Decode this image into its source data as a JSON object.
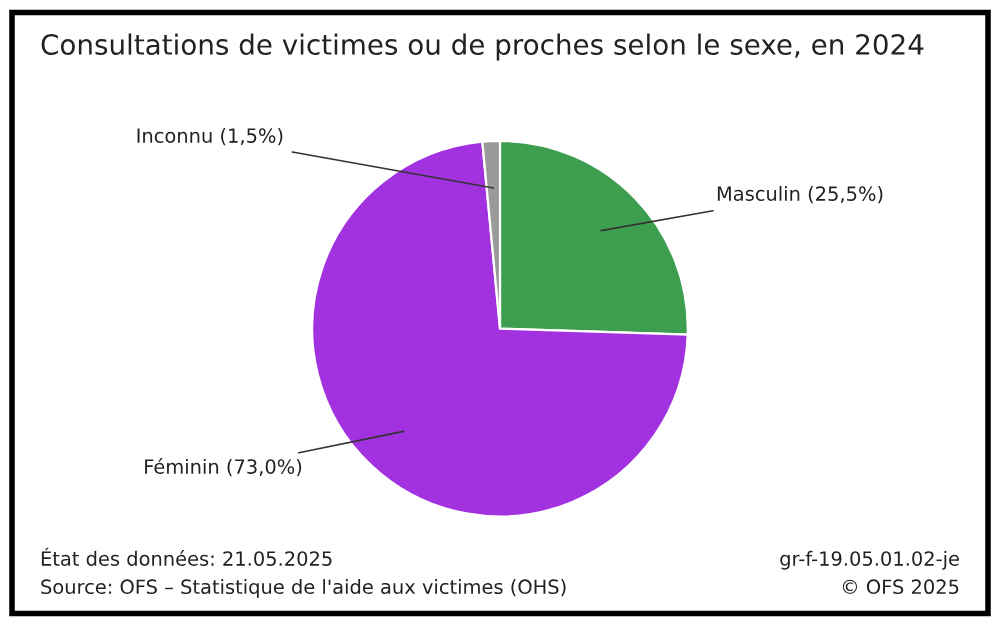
{
  "chart_data": {
    "type": "pie",
    "title": "Consultations de victimes ou de proches selon le sexe, en 2024",
    "categories": [
      "Masculin",
      "Féminin",
      "Inconnu"
    ],
    "values": [
      25.5,
      73.0,
      1.5
    ],
    "value_labels": [
      "(25,5%)",
      "(73,0%)",
      "(1,5%)"
    ],
    "colors": [
      "#3d9e50",
      "#a232e0",
      "#9a9a9a"
    ],
    "legend": false,
    "annotations": [
      "État des données: 21.05.2025",
      "Source: OFS – Statistique de l'aide aux victimes (OHS)",
      "gr-f-19.05.01.02-je",
      "© OFS 2025"
    ]
  }
}
